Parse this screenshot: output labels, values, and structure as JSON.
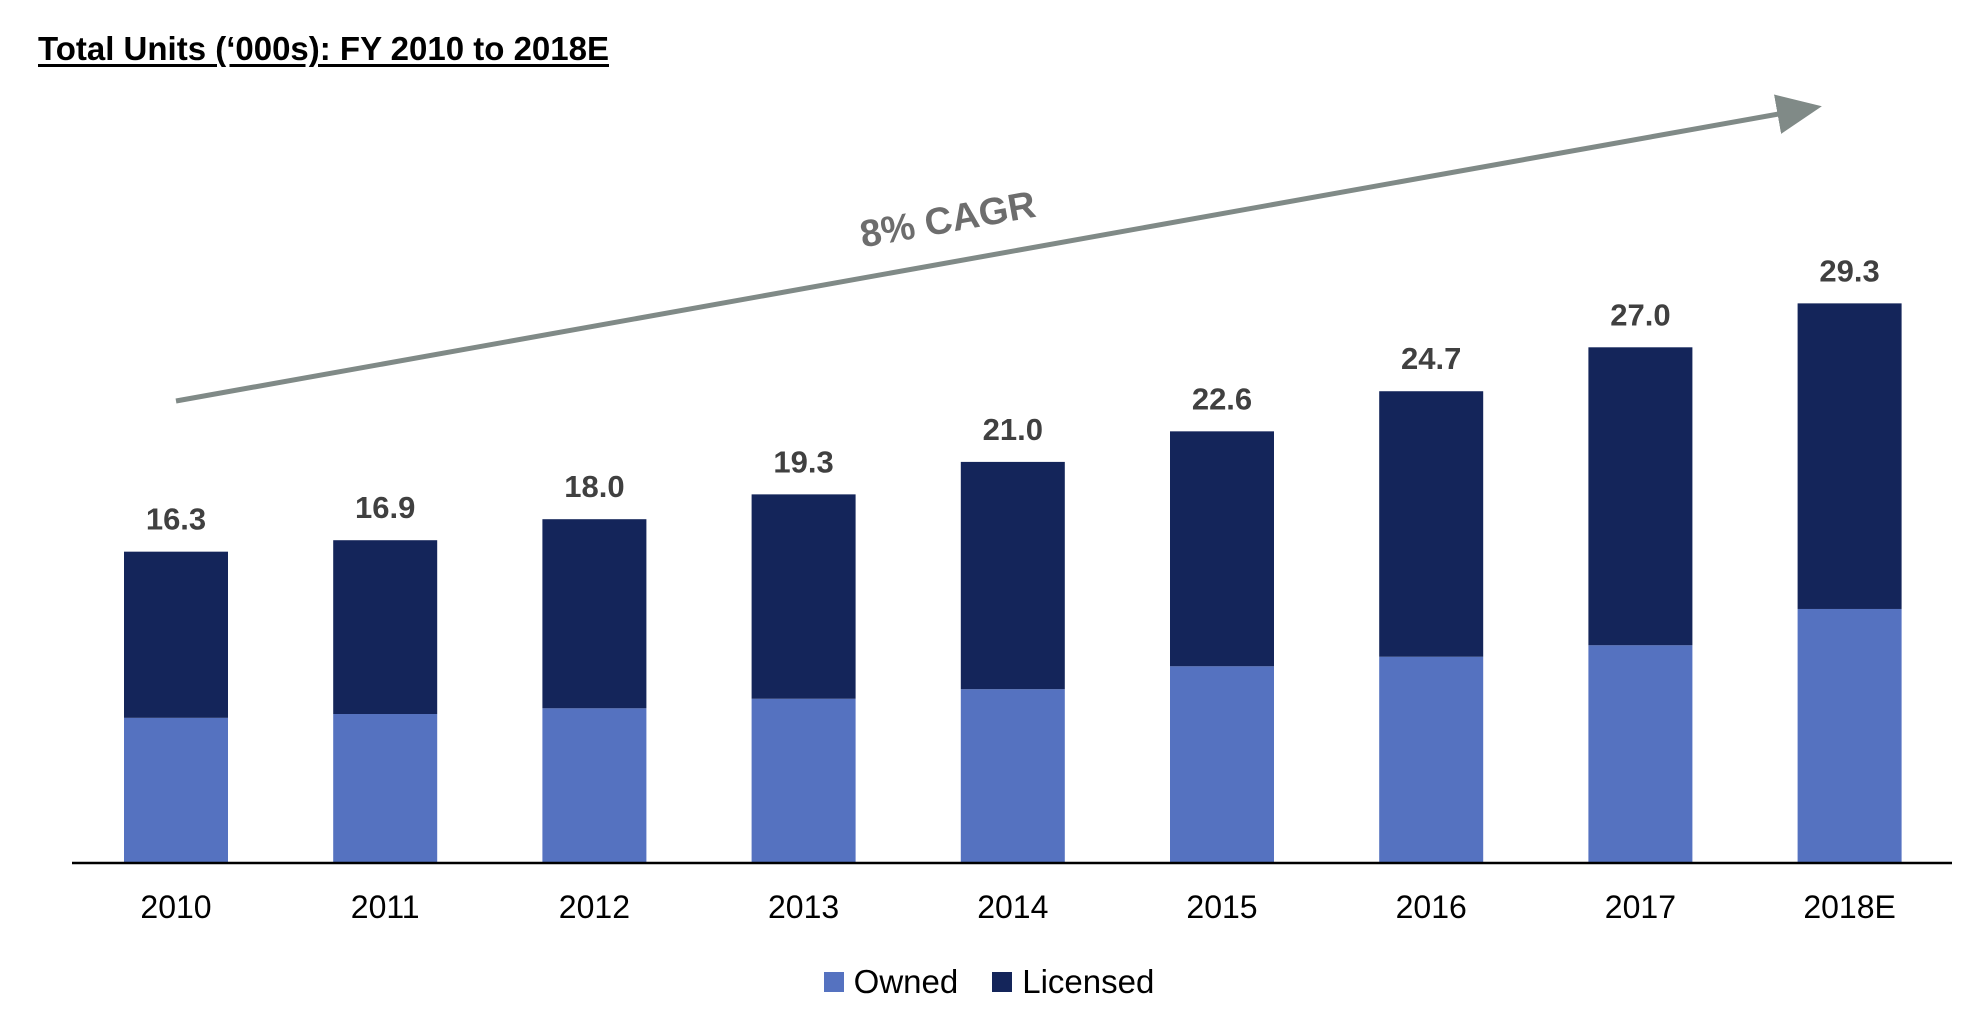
{
  "chart_data": {
    "type": "bar",
    "stacked": true,
    "title": "Total Units (‘000s): FY 2010 to 2018E",
    "categories": [
      "2010",
      "2011",
      "2012",
      "2013",
      "2014",
      "2015",
      "2016",
      "2017",
      "2018E"
    ],
    "series": [
      {
        "name": "Owned",
        "color": "#5572c0",
        "values": [
          7.6,
          7.8,
          8.1,
          8.6,
          9.1,
          10.3,
          10.8,
          11.4,
          13.3
        ]
      },
      {
        "name": "Licensed",
        "color": "#14255a",
        "values": [
          8.7,
          9.1,
          9.9,
          10.7,
          11.9,
          12.3,
          13.9,
          15.6,
          16.0
        ]
      }
    ],
    "total_labels": [
      "16.3",
      "16.9",
      "18.0",
      "19.3",
      "21.0",
      "22.6",
      "24.7",
      "27.0",
      "29.3"
    ],
    "ylim": [
      0,
      34
    ],
    "grid": false,
    "legend_position": "bottom",
    "annotation": {
      "text": "8% CAGR",
      "arrow_color": "#808a87"
    }
  }
}
